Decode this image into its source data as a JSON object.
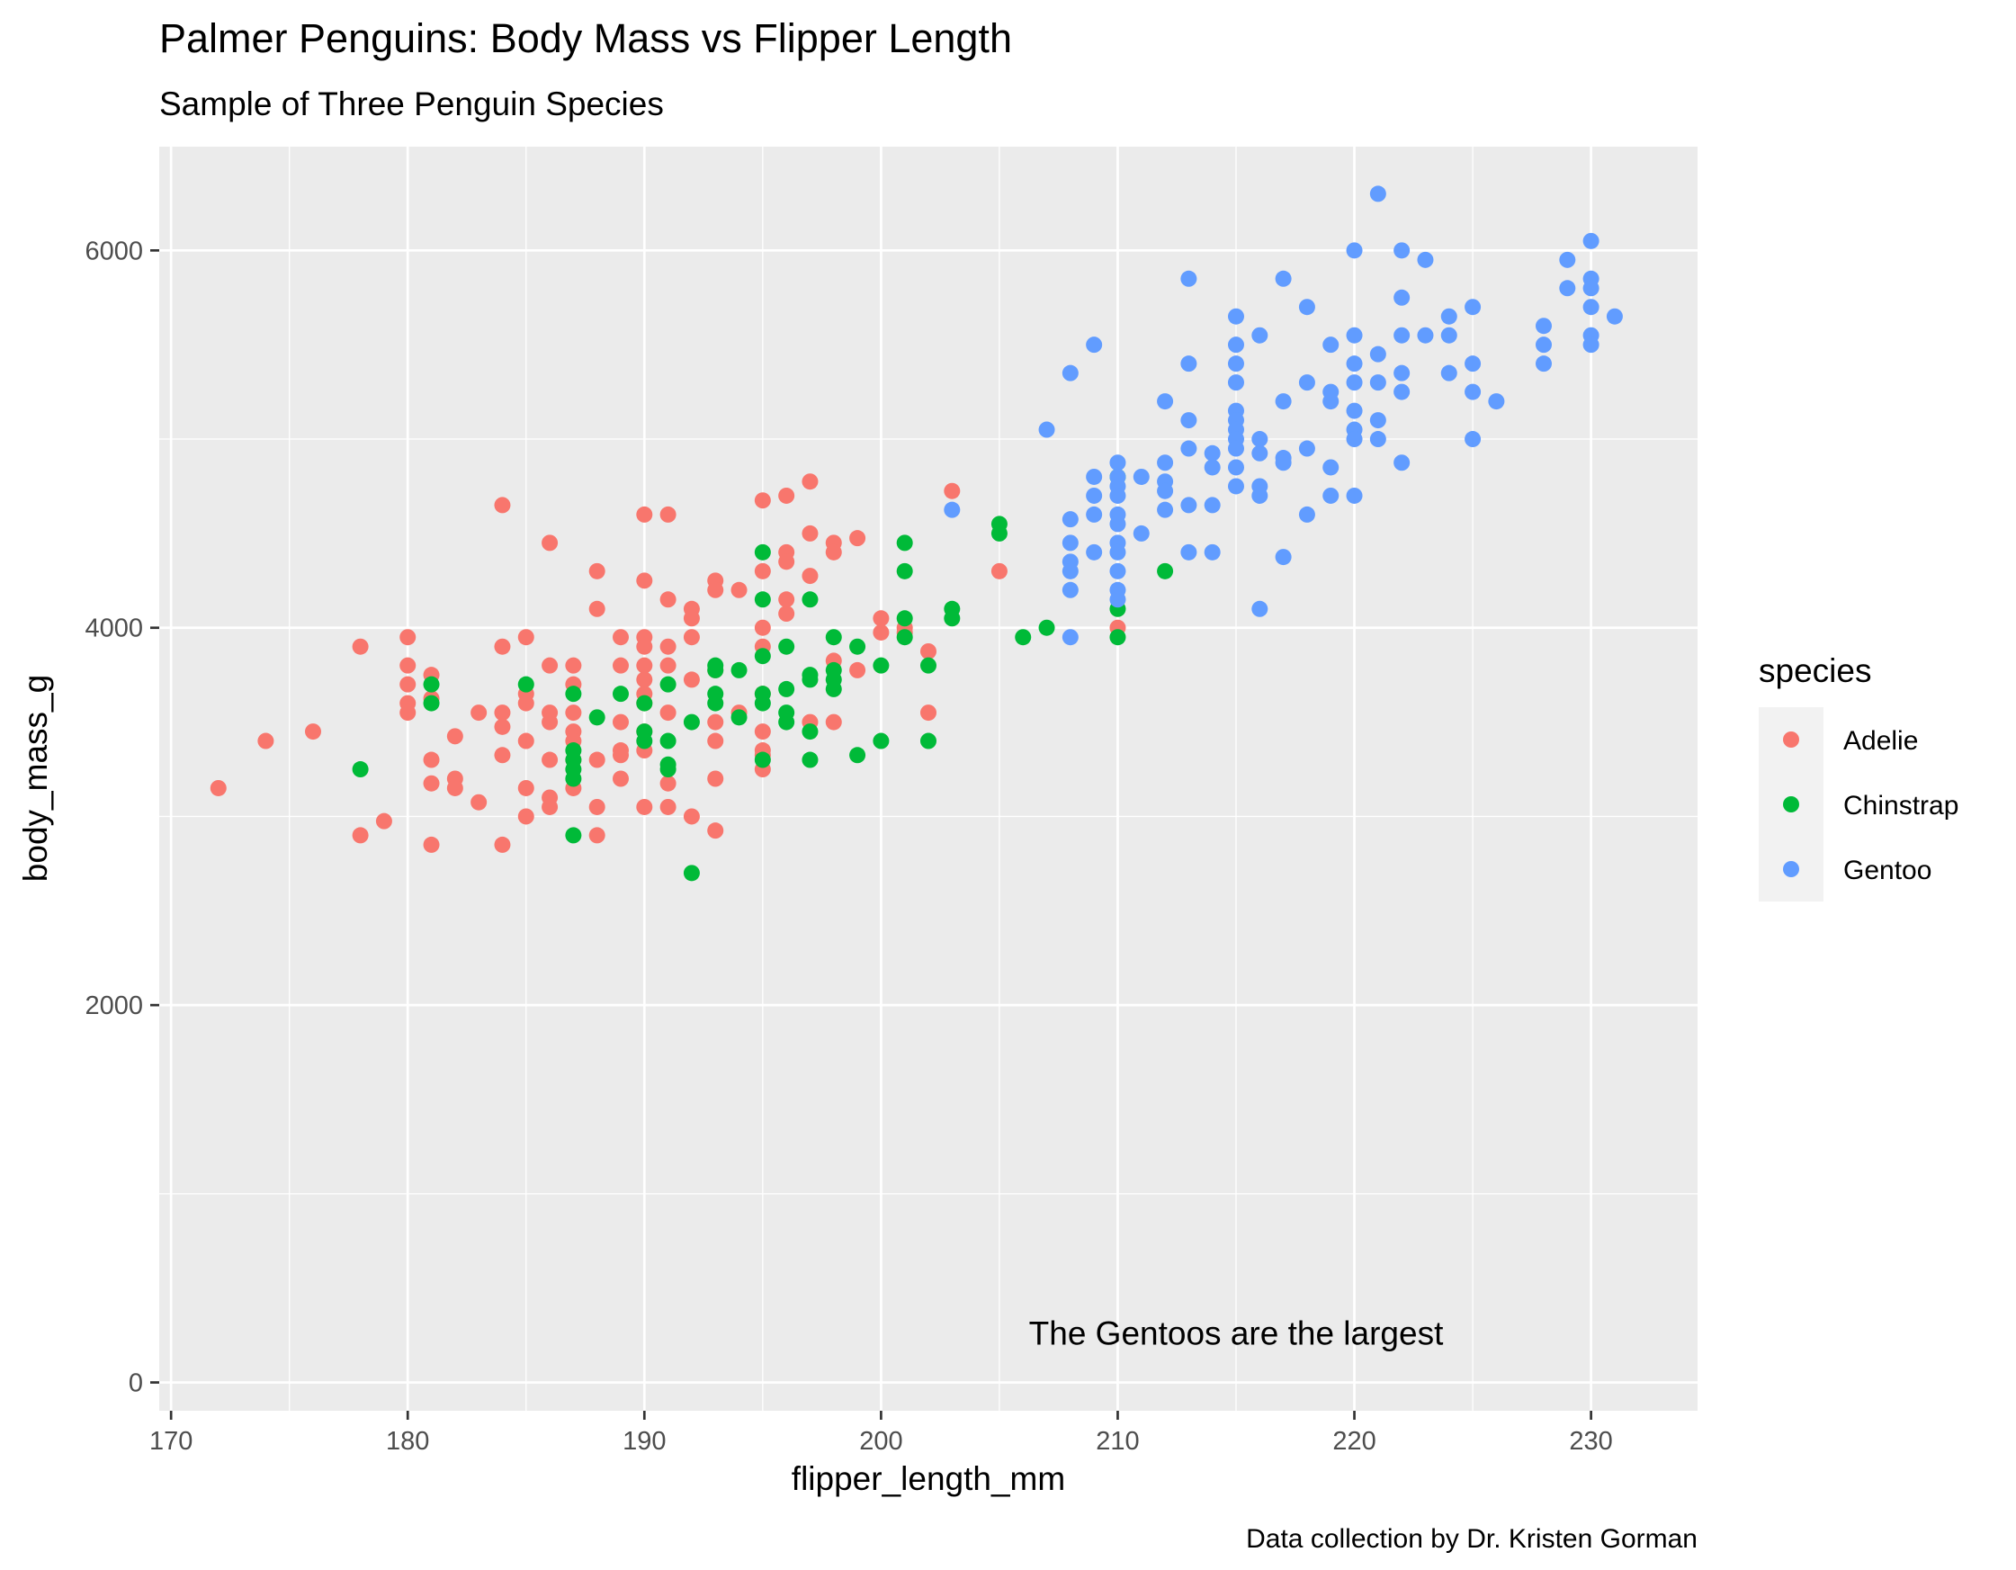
{
  "chart_data": {
    "type": "scatter",
    "title": "Palmer Penguins: Body Mass vs Flipper Length",
    "subtitle": "Sample of Three Penguin Species",
    "xlabel": "flipper_length_mm",
    "ylabel": "body_mass_g",
    "caption": "Data collection by Dr. Kristen Gorman",
    "annotation": {
      "text": "The Gentoos are the largest",
      "x": 215,
      "y": 200
    },
    "xlim": [
      169.5,
      234.5
    ],
    "ylim": [
      -150,
      6550
    ],
    "xticks": [
      170,
      180,
      190,
      200,
      210,
      220,
      230
    ],
    "yticks": [
      0,
      2000,
      4000,
      6000
    ],
    "grid": true,
    "legend": {
      "title": "species",
      "position": "right"
    },
    "series": [
      {
        "name": "Adelie",
        "color": "#F8766D",
        "points": [
          [
            172,
            3150
          ],
          [
            174,
            3400
          ],
          [
            176,
            3450
          ],
          [
            178,
            3900
          ],
          [
            178,
            2900
          ],
          [
            179,
            2975
          ],
          [
            180,
            3950
          ],
          [
            180,
            3800
          ],
          [
            180,
            3700
          ],
          [
            180,
            3600
          ],
          [
            180,
            3550
          ],
          [
            181,
            3750
          ],
          [
            181,
            3625
          ],
          [
            181,
            3300
          ],
          [
            181,
            3175
          ],
          [
            181,
            2850
          ],
          [
            182,
            3425
          ],
          [
            182,
            3200
          ],
          [
            182,
            3150
          ],
          [
            183,
            3550
          ],
          [
            183,
            3075
          ],
          [
            184,
            4650
          ],
          [
            184,
            3900
          ],
          [
            184,
            3550
          ],
          [
            184,
            3475
          ],
          [
            184,
            3325
          ],
          [
            184,
            2850
          ],
          [
            185,
            3950
          ],
          [
            185,
            3650
          ],
          [
            185,
            3600
          ],
          [
            185,
            3400
          ],
          [
            185,
            3150
          ],
          [
            185,
            3000
          ],
          [
            186,
            4450
          ],
          [
            186,
            3800
          ],
          [
            186,
            3550
          ],
          [
            186,
            3500
          ],
          [
            186,
            3300
          ],
          [
            186,
            3100
          ],
          [
            186,
            3050
          ],
          [
            187,
            3800
          ],
          [
            187,
            3700
          ],
          [
            187,
            3550
          ],
          [
            187,
            3450
          ],
          [
            187,
            3400
          ],
          [
            187,
            3300
          ],
          [
            187,
            3150
          ],
          [
            188,
            4300
          ],
          [
            188,
            4100
          ],
          [
            188,
            3300
          ],
          [
            188,
            3050
          ],
          [
            188,
            2900
          ],
          [
            189,
            3950
          ],
          [
            189,
            3800
          ],
          [
            189,
            3500
          ],
          [
            189,
            3350
          ],
          [
            189,
            3325
          ],
          [
            189,
            3200
          ],
          [
            190,
            4600
          ],
          [
            190,
            4250
          ],
          [
            190,
            3950
          ],
          [
            190,
            3900
          ],
          [
            190,
            3800
          ],
          [
            190,
            3725
          ],
          [
            190,
            3650
          ],
          [
            190,
            3600
          ],
          [
            190,
            3450
          ],
          [
            190,
            3350
          ],
          [
            190,
            3050
          ],
          [
            191,
            4600
          ],
          [
            191,
            4150
          ],
          [
            191,
            3900
          ],
          [
            191,
            3800
          ],
          [
            191,
            3550
          ],
          [
            191,
            3175
          ],
          [
            191,
            3050
          ],
          [
            192,
            4100
          ],
          [
            192,
            4050
          ],
          [
            192,
            3950
          ],
          [
            192,
            3725
          ],
          [
            192,
            3000
          ],
          [
            193,
            4250
          ],
          [
            193,
            4200
          ],
          [
            193,
            3775
          ],
          [
            193,
            3500
          ],
          [
            193,
            3400
          ],
          [
            193,
            3200
          ],
          [
            193,
            2925
          ],
          [
            194,
            4200
          ],
          [
            194,
            3550
          ],
          [
            195,
            4675
          ],
          [
            195,
            4300
          ],
          [
            195,
            4000
          ],
          [
            195,
            3900
          ],
          [
            195,
            3650
          ],
          [
            195,
            3450
          ],
          [
            195,
            3350
          ],
          [
            195,
            3325
          ],
          [
            195,
            3250
          ],
          [
            196,
            4700
          ],
          [
            196,
            4400
          ],
          [
            196,
            4350
          ],
          [
            196,
            4150
          ],
          [
            196,
            4075
          ],
          [
            197,
            4775
          ],
          [
            197,
            4500
          ],
          [
            197,
            4275
          ],
          [
            197,
            3500
          ],
          [
            198,
            4450
          ],
          [
            198,
            4400
          ],
          [
            198,
            3825
          ],
          [
            198,
            3500
          ],
          [
            199,
            4475
          ],
          [
            199,
            3775
          ],
          [
            200,
            4050
          ],
          [
            200,
            3975
          ],
          [
            201,
            4000
          ],
          [
            201,
            3975
          ],
          [
            202,
            3875
          ],
          [
            202,
            3550
          ],
          [
            203,
            4725
          ],
          [
            205,
            4300
          ],
          [
            210,
            4000
          ]
        ]
      },
      {
        "name": "Chinstrap",
        "color": "#00BA38",
        "points": [
          [
            178,
            3250
          ],
          [
            181,
            3700
          ],
          [
            181,
            3600
          ],
          [
            185,
            3700
          ],
          [
            187,
            3650
          ],
          [
            187,
            3350
          ],
          [
            187,
            3300
          ],
          [
            187,
            3250
          ],
          [
            187,
            3200
          ],
          [
            187,
            2900
          ],
          [
            188,
            3525
          ],
          [
            189,
            3650
          ],
          [
            190,
            3600
          ],
          [
            190,
            3450
          ],
          [
            190,
            3400
          ],
          [
            191,
            3700
          ],
          [
            191,
            3400
          ],
          [
            191,
            3275
          ],
          [
            191,
            3250
          ],
          [
            192,
            3500
          ],
          [
            192,
            2700
          ],
          [
            193,
            3800
          ],
          [
            193,
            3775
          ],
          [
            193,
            3650
          ],
          [
            193,
            3600
          ],
          [
            194,
            3775
          ],
          [
            194,
            3525
          ],
          [
            195,
            4400
          ],
          [
            195,
            4150
          ],
          [
            195,
            3850
          ],
          [
            195,
            3650
          ],
          [
            195,
            3600
          ],
          [
            195,
            3300
          ],
          [
            196,
            3900
          ],
          [
            196,
            3675
          ],
          [
            196,
            3550
          ],
          [
            196,
            3500
          ],
          [
            197,
            4150
          ],
          [
            197,
            3750
          ],
          [
            197,
            3725
          ],
          [
            197,
            3450
          ],
          [
            197,
            3300
          ],
          [
            198,
            3950
          ],
          [
            198,
            3775
          ],
          [
            198,
            3725
          ],
          [
            198,
            3675
          ],
          [
            199,
            3900
          ],
          [
            199,
            3325
          ],
          [
            200,
            3800
          ],
          [
            200,
            3400
          ],
          [
            201,
            4450
          ],
          [
            201,
            4300
          ],
          [
            201,
            4050
          ],
          [
            201,
            3950
          ],
          [
            202,
            3800
          ],
          [
            202,
            3400
          ],
          [
            203,
            4100
          ],
          [
            203,
            4050
          ],
          [
            205,
            4550
          ],
          [
            205,
            4500
          ],
          [
            206,
            3950
          ],
          [
            207,
            4000
          ],
          [
            210,
            4800
          ],
          [
            210,
            4100
          ],
          [
            210,
            3950
          ],
          [
            212,
            4300
          ]
        ]
      },
      {
        "name": "Gentoo",
        "color": "#619CFF",
        "points": [
          [
            203,
            4625
          ],
          [
            207,
            5050
          ],
          [
            208,
            5350
          ],
          [
            208,
            4575
          ],
          [
            208,
            4450
          ],
          [
            208,
            4350
          ],
          [
            208,
            4300
          ],
          [
            208,
            4200
          ],
          [
            208,
            3950
          ],
          [
            209,
            5500
          ],
          [
            209,
            4800
          ],
          [
            209,
            4700
          ],
          [
            209,
            4600
          ],
          [
            209,
            4400
          ],
          [
            210,
            4875
          ],
          [
            210,
            4800
          ],
          [
            210,
            4750
          ],
          [
            210,
            4700
          ],
          [
            210,
            4600
          ],
          [
            210,
            4550
          ],
          [
            210,
            4450
          ],
          [
            210,
            4400
          ],
          [
            210,
            4300
          ],
          [
            210,
            4200
          ],
          [
            210,
            4150
          ],
          [
            211,
            4800
          ],
          [
            211,
            4500
          ],
          [
            212,
            5200
          ],
          [
            212,
            4875
          ],
          [
            212,
            4775
          ],
          [
            212,
            4725
          ],
          [
            212,
            4625
          ],
          [
            213,
            5850
          ],
          [
            213,
            5400
          ],
          [
            213,
            5100
          ],
          [
            213,
            4950
          ],
          [
            213,
            4650
          ],
          [
            213,
            4400
          ],
          [
            214,
            4925
          ],
          [
            214,
            4850
          ],
          [
            214,
            4650
          ],
          [
            214,
            4400
          ],
          [
            215,
            5650
          ],
          [
            215,
            5500
          ],
          [
            215,
            5400
          ],
          [
            215,
            5300
          ],
          [
            215,
            5150
          ],
          [
            215,
            5100
          ],
          [
            215,
            5050
          ],
          [
            215,
            5000
          ],
          [
            215,
            4950
          ],
          [
            215,
            4850
          ],
          [
            215,
            4750
          ],
          [
            216,
            5550
          ],
          [
            216,
            5000
          ],
          [
            216,
            4925
          ],
          [
            216,
            4750
          ],
          [
            216,
            4700
          ],
          [
            216,
            4100
          ],
          [
            217,
            5850
          ],
          [
            217,
            5200
          ],
          [
            217,
            4900
          ],
          [
            217,
            4875
          ],
          [
            217,
            4375
          ],
          [
            218,
            5700
          ],
          [
            218,
            5300
          ],
          [
            218,
            4950
          ],
          [
            218,
            4600
          ],
          [
            219,
            5500
          ],
          [
            219,
            5250
          ],
          [
            219,
            5200
          ],
          [
            219,
            4850
          ],
          [
            219,
            4700
          ],
          [
            220,
            6000
          ],
          [
            220,
            5550
          ],
          [
            220,
            5400
          ],
          [
            220,
            5300
          ],
          [
            220,
            5150
          ],
          [
            220,
            5050
          ],
          [
            220,
            5000
          ],
          [
            220,
            4700
          ],
          [
            221,
            6300
          ],
          [
            221,
            5450
          ],
          [
            221,
            5300
          ],
          [
            221,
            5100
          ],
          [
            221,
            5000
          ],
          [
            222,
            6000
          ],
          [
            222,
            5750
          ],
          [
            222,
            5550
          ],
          [
            222,
            5350
          ],
          [
            222,
            5250
          ],
          [
            222,
            4875
          ],
          [
            223,
            5950
          ],
          [
            223,
            5550
          ],
          [
            224,
            5650
          ],
          [
            224,
            5550
          ],
          [
            224,
            5350
          ],
          [
            225,
            5700
          ],
          [
            225,
            5400
          ],
          [
            225,
            5250
          ],
          [
            225,
            5000
          ],
          [
            226,
            5200
          ],
          [
            228,
            5600
          ],
          [
            228,
            5500
          ],
          [
            228,
            5400
          ],
          [
            229,
            5950
          ],
          [
            229,
            5800
          ],
          [
            230,
            6050
          ],
          [
            230,
            5850
          ],
          [
            230,
            5800
          ],
          [
            230,
            5700
          ],
          [
            230,
            5550
          ],
          [
            230,
            5500
          ],
          [
            231,
            5650
          ]
        ]
      }
    ]
  }
}
